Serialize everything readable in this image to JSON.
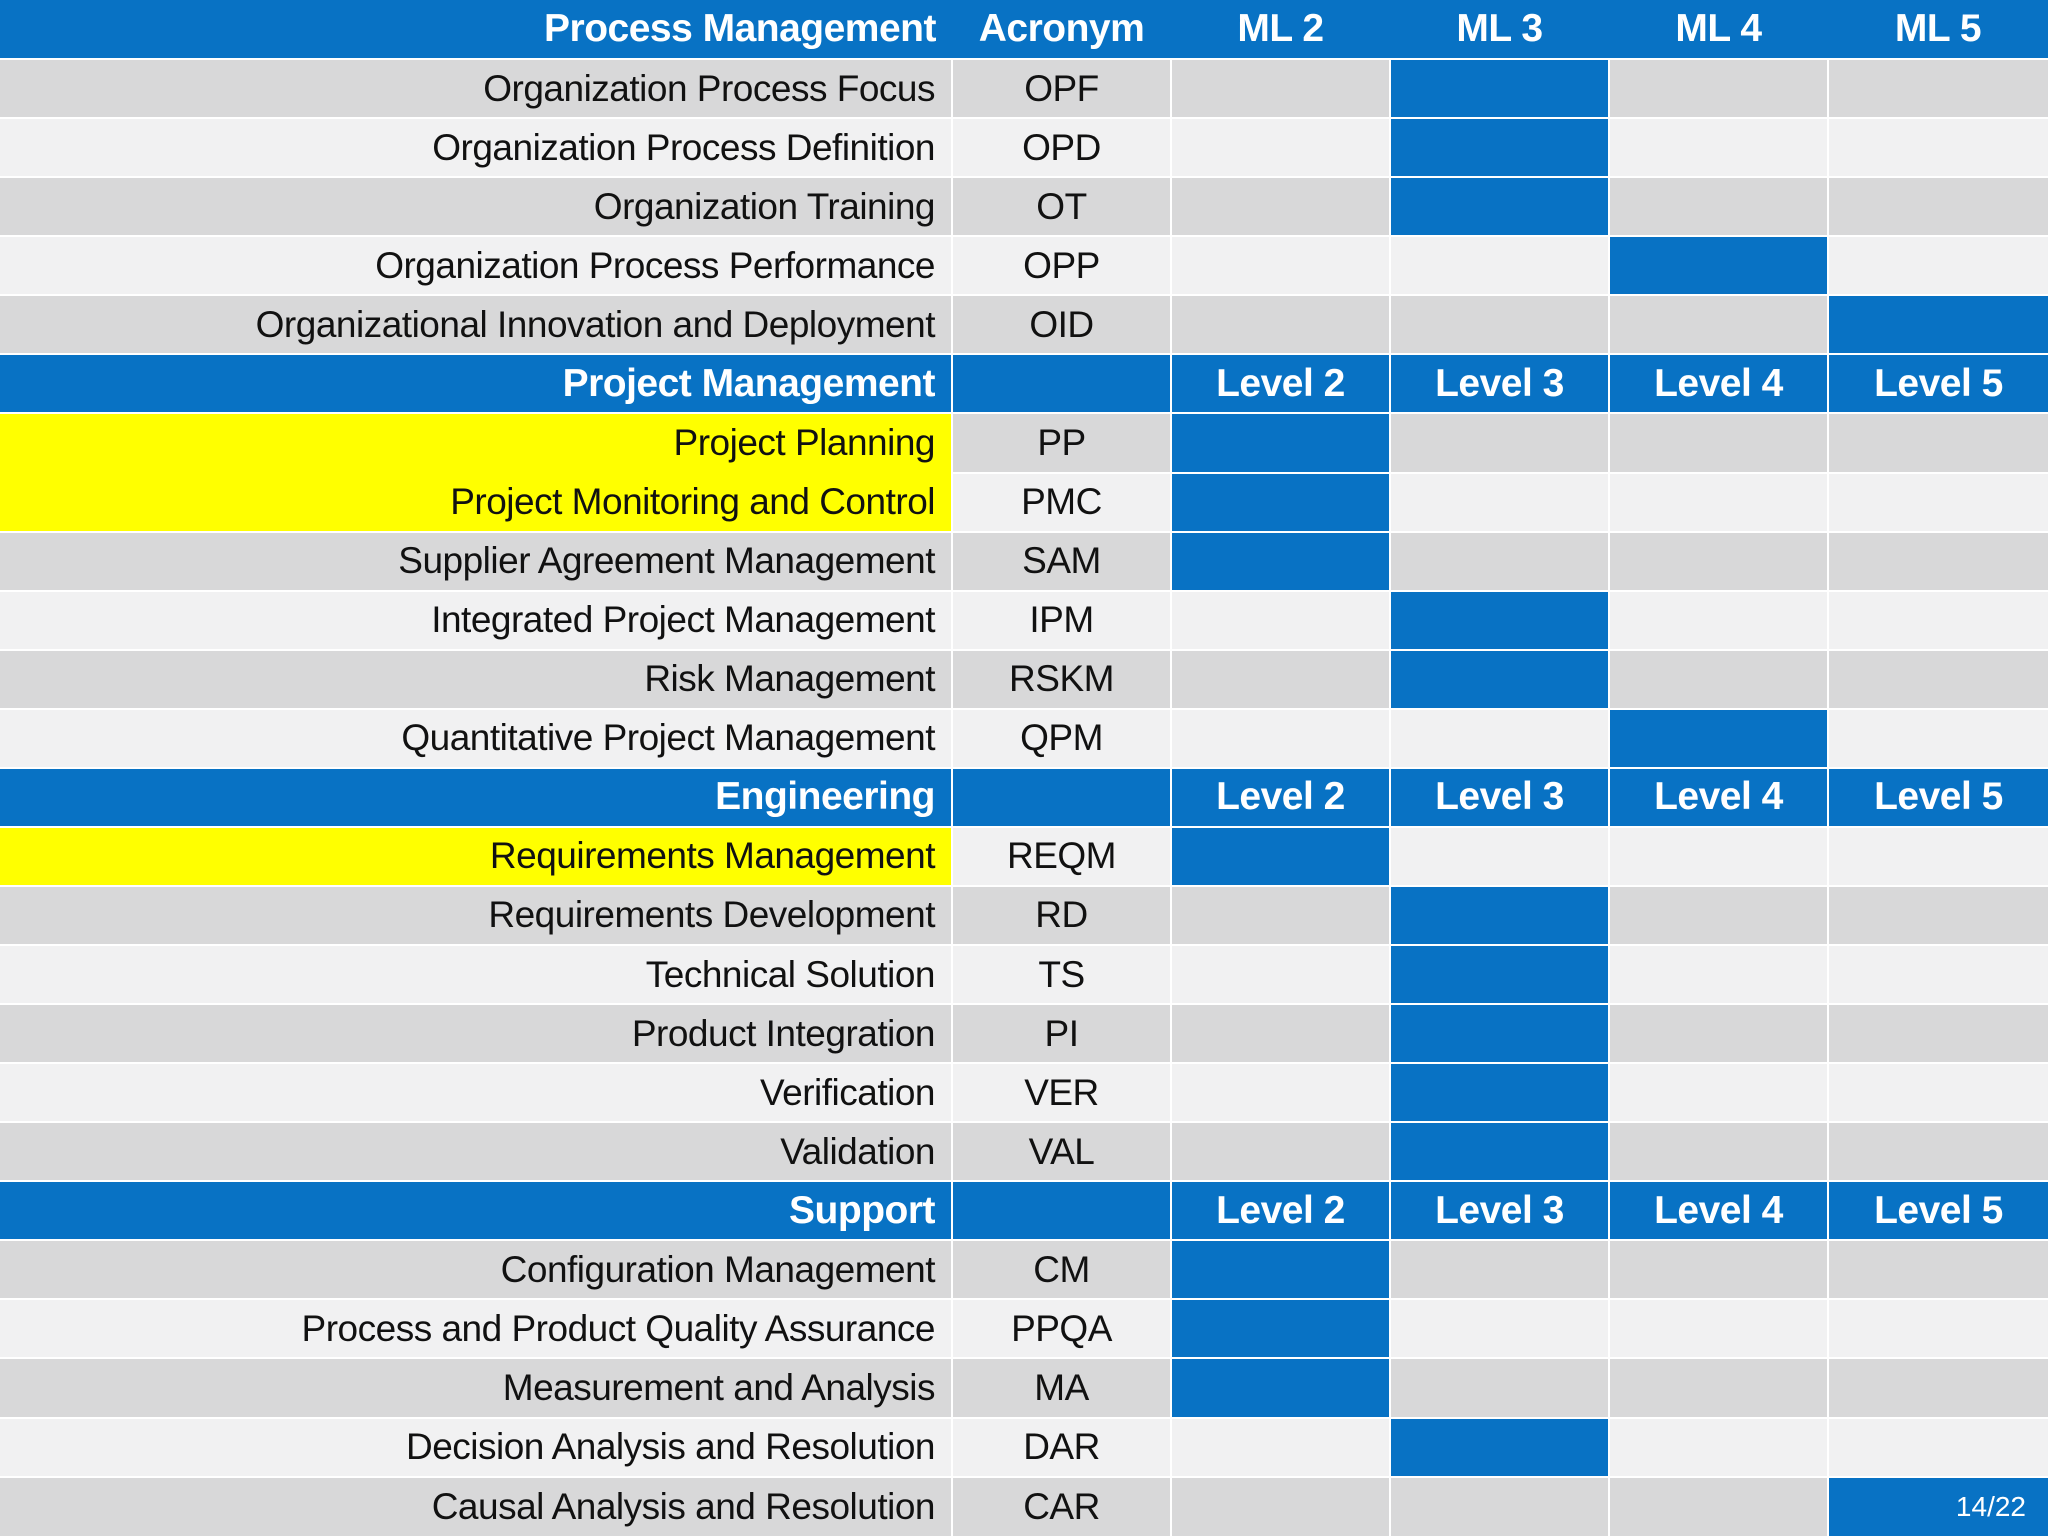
{
  "page_indicator": "14/22",
  "colors": {
    "blue": "#0872c4",
    "row_dark": "#d8d8d9",
    "row_light": "#f1f1f2",
    "highlight_yellow": "#ffff00"
  },
  "table": {
    "acronym_header": "Acronym",
    "ml_headers": [
      "ML 2",
      "ML 3",
      "ML 4",
      "ML 5"
    ],
    "level_headers": [
      "Level 2",
      "Level 3",
      "Level 4",
      "Level 5"
    ],
    "sections": [
      {
        "title": "Process Management",
        "header_style": "ml",
        "rows": [
          {
            "name": "Organization Process Focus",
            "acronym": "OPF",
            "level": 3
          },
          {
            "name": "Organization Process Definition",
            "acronym": "OPD",
            "level": 3
          },
          {
            "name": "Organization Training",
            "acronym": "OT",
            "level": 3
          },
          {
            "name": "Organization Process Performance",
            "acronym": "OPP",
            "level": 4
          },
          {
            "name": "Organizational Innovation and Deployment",
            "acronym": "OID",
            "level": 5
          }
        ]
      },
      {
        "title": "Project Management",
        "header_style": "level",
        "rows": [
          {
            "name": "Project Planning",
            "acronym": "PP",
            "level": 2,
            "highlight": true
          },
          {
            "name": "Project Monitoring and Control",
            "acronym": "PMC",
            "level": 2,
            "highlight": true,
            "highlight_joins_previous": true
          },
          {
            "name": "Supplier Agreement Management",
            "acronym": "SAM",
            "level": 2
          },
          {
            "name": "Integrated Project Management",
            "acronym": "IPM",
            "level": 3
          },
          {
            "name": "Risk Management",
            "acronym": "RSKM",
            "level": 3
          },
          {
            "name": "Quantitative Project Management",
            "acronym": "QPM",
            "level": 4
          }
        ]
      },
      {
        "title": "Engineering",
        "header_style": "level",
        "rows": [
          {
            "name": "Requirements Management",
            "acronym": "REQM",
            "level": 2,
            "highlight": true
          },
          {
            "name": "Requirements Development",
            "acronym": "RD",
            "level": 3
          },
          {
            "name": "Technical Solution",
            "acronym": "TS",
            "level": 3
          },
          {
            "name": "Product Integration",
            "acronym": "PI",
            "level": 3
          },
          {
            "name": "Verification",
            "acronym": "VER",
            "level": 3
          },
          {
            "name": "Validation",
            "acronym": "VAL",
            "level": 3
          }
        ]
      },
      {
        "title": "Support",
        "header_style": "level",
        "rows": [
          {
            "name": "Configuration Management",
            "acronym": "CM",
            "level": 2
          },
          {
            "name": "Process and Product Quality Assurance",
            "acronym": "PPQA",
            "level": 2
          },
          {
            "name": "Measurement and Analysis",
            "acronym": "MA",
            "level": 2
          },
          {
            "name": "Decision Analysis and Resolution",
            "acronym": "DAR",
            "level": 3
          },
          {
            "name": "Causal Analysis and Resolution",
            "acronym": "CAR",
            "level": 5,
            "has_page_indicator": true
          }
        ]
      }
    ]
  }
}
